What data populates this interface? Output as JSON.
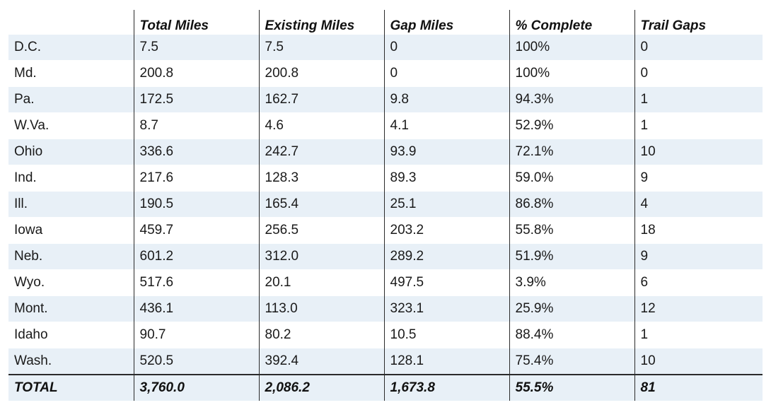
{
  "table": {
    "headers": [
      "",
      "Total Miles",
      "Existing Miles",
      "Gap Miles",
      "% Complete",
      "Trail Gaps"
    ],
    "rows": [
      [
        "D.C.",
        "7.5",
        "7.5",
        "0",
        "100%",
        "0"
      ],
      [
        "Md.",
        "200.8",
        "200.8",
        "0",
        "100%",
        "0"
      ],
      [
        "Pa.",
        "172.5",
        "162.7",
        "9.8",
        "94.3%",
        "1"
      ],
      [
        "W.Va.",
        "8.7",
        "4.6",
        "4.1",
        "52.9%",
        "1"
      ],
      [
        "Ohio",
        "336.6",
        "242.7",
        "93.9",
        "72.1%",
        "10"
      ],
      [
        "Ind.",
        "217.6",
        "128.3",
        "89.3",
        "59.0%",
        "9"
      ],
      [
        "Ill.",
        "190.5",
        "165.4",
        "25.1",
        "86.8%",
        "4"
      ],
      [
        "Iowa",
        "459.7",
        "256.5",
        "203.2",
        "55.8%",
        "18"
      ],
      [
        "Neb.",
        "601.2",
        "312.0",
        "289.2",
        "51.9%",
        "9"
      ],
      [
        "Wyo.",
        "517.6",
        "20.1",
        "497.5",
        "3.9%",
        "6"
      ],
      [
        "Mont.",
        "436.1",
        "113.0",
        "323.1",
        "25.9%",
        "12"
      ],
      [
        "Idaho",
        "90.7",
        "80.2",
        "10.5",
        "88.4%",
        "1"
      ],
      [
        "Wash.",
        "520.5",
        "392.4",
        "128.1",
        "75.4%",
        "10"
      ]
    ],
    "total": [
      "TOTAL",
      "3,760.0",
      "2,086.2",
      "1,673.8",
      "55.5%",
      "81"
    ]
  },
  "colors": {
    "stripe": "#e8f0f7",
    "border": "#2b2b2b"
  }
}
